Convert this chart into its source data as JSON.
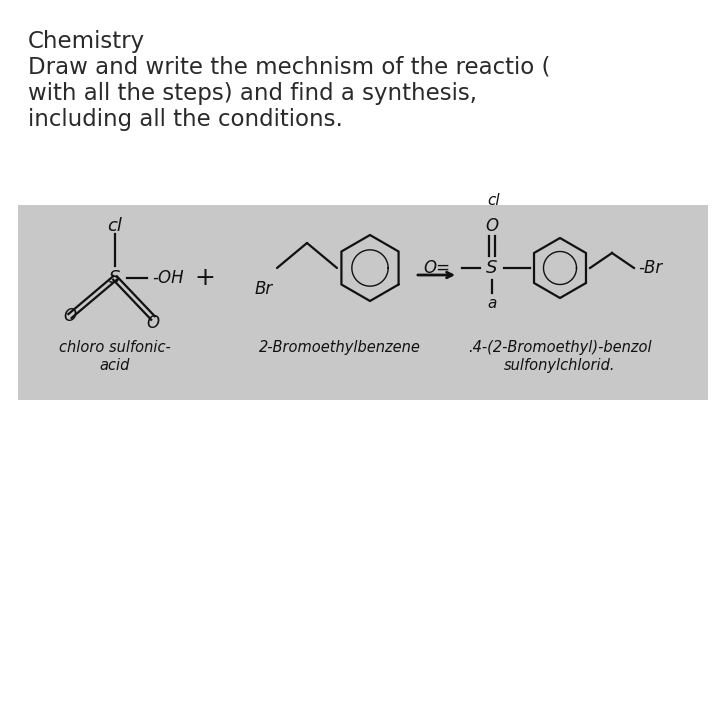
{
  "title_line1": "Chemistry",
  "title_line2": "Draw and write the mechnism of the reactio (",
  "title_line3": "with all the steps) and find a synthesis,",
  "title_line4": "including all the conditions.",
  "title_color": "#2a2a2a",
  "title_fontsize": 16.5,
  "bg_color": "#c8c8c8",
  "hw_color": "#111111",
  "label1_line1": "chloro sulfonic-",
  "label1_line2": "acid",
  "label2": "2-Bromoethylbenzene",
  "label3_line1": ".4-(2-Bromoethyl)-benzol",
  "label3_line2": "sulfonylchlorid.",
  "label_fontsize": 10.5
}
